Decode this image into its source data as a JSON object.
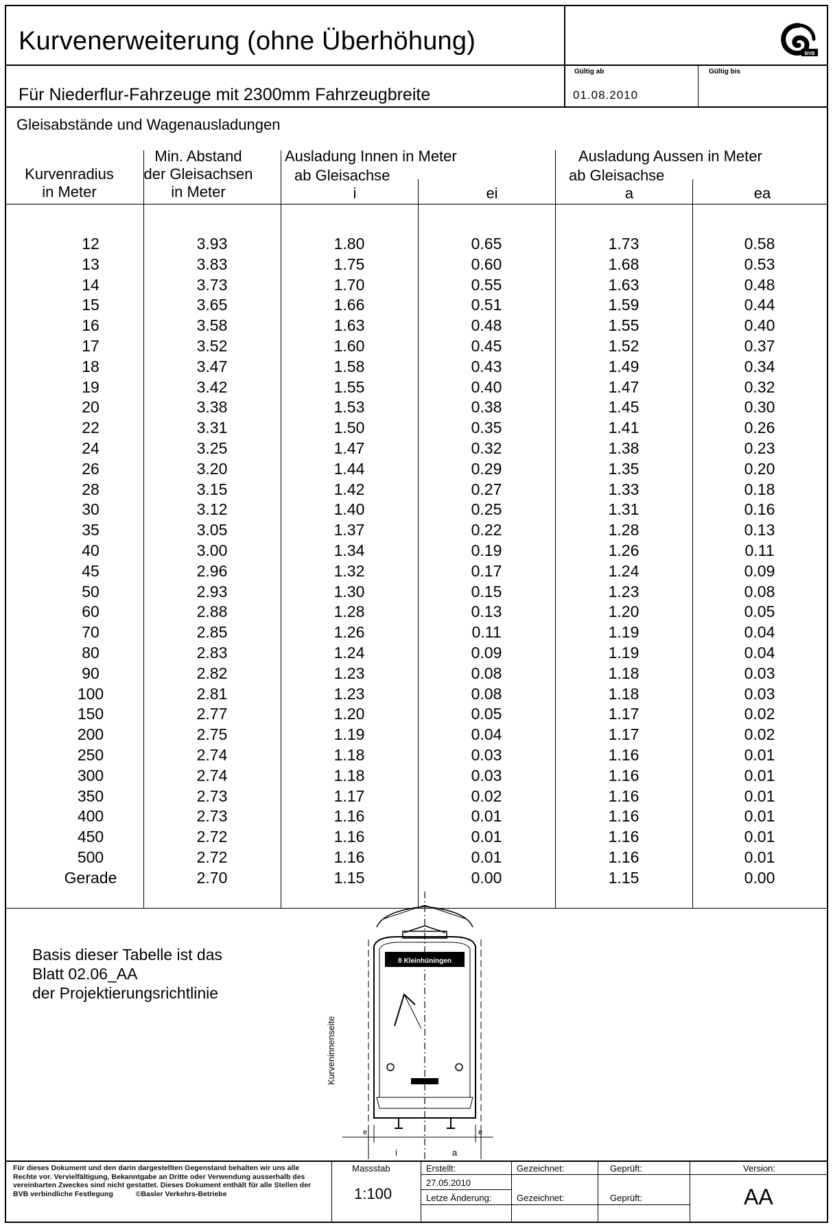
{
  "header": {
    "title": "Kurvenerweiterung (ohne Überhöhung)",
    "subtitle": "Für Niederflur-Fahrzeuge mit 2300mm Fahrzeugbreite",
    "valid_from_label": "Gültig ab",
    "valid_from_value": "01.08.2010",
    "valid_to_label": "Gültig bis",
    "logo_text": "BVB"
  },
  "section_title": "Gleisabstände und Wagenausladungen",
  "table": {
    "col_radius_line1": "Kurvenradius",
    "col_radius_line2": "in Meter",
    "col_min_line1": "Min. Abstand",
    "col_min_line2": "der Gleisachsen",
    "col_min_line3": "in Meter",
    "group_inner": "Ausladung Innen in Meter",
    "group_inner_sub": "ab Gleisachse",
    "group_outer": "Ausladung Aussen in Meter",
    "group_outer_sub": "ab Gleisachse",
    "col_i": "i",
    "col_ei": "ei",
    "col_a": "a",
    "col_ea": "ea",
    "rows": [
      [
        "12",
        "3.93",
        "1.80",
        "0.65",
        "1.73",
        "0.58"
      ],
      [
        "13",
        "3.83",
        "1.75",
        "0.60",
        "1.68",
        "0.53"
      ],
      [
        "14",
        "3.73",
        "1.70",
        "0.55",
        "1.63",
        "0.48"
      ],
      [
        "15",
        "3.65",
        "1.66",
        "0.51",
        "1.59",
        "0.44"
      ],
      [
        "16",
        "3.58",
        "1.63",
        "0.48",
        "1.55",
        "0.40"
      ],
      [
        "17",
        "3.52",
        "1.60",
        "0.45",
        "1.52",
        "0.37"
      ],
      [
        "18",
        "3.47",
        "1.58",
        "0.43",
        "1.49",
        "0.34"
      ],
      [
        "19",
        "3.42",
        "1.55",
        "0.40",
        "1.47",
        "0.32"
      ],
      [
        "20",
        "3.38",
        "1.53",
        "0.38",
        "1.45",
        "0.30"
      ],
      [
        "22",
        "3.31",
        "1.50",
        "0.35",
        "1.41",
        "0.26"
      ],
      [
        "24",
        "3.25",
        "1.47",
        "0.32",
        "1.38",
        "0.23"
      ],
      [
        "26",
        "3.20",
        "1.44",
        "0.29",
        "1.35",
        "0.20"
      ],
      [
        "28",
        "3.15",
        "1.42",
        "0.27",
        "1.33",
        "0.18"
      ],
      [
        "30",
        "3.12",
        "1.40",
        "0.25",
        "1.31",
        "0.16"
      ],
      [
        "35",
        "3.05",
        "1.37",
        "0.22",
        "1.28",
        "0.13"
      ],
      [
        "40",
        "3.00",
        "1.34",
        "0.19",
        "1.26",
        "0.11"
      ],
      [
        "45",
        "2.96",
        "1.32",
        "0.17",
        "1.24",
        "0.09"
      ],
      [
        "50",
        "2.93",
        "1.30",
        "0.15",
        "1.23",
        "0.08"
      ],
      [
        "60",
        "2.88",
        "1.28",
        "0.13",
        "1.20",
        "0.05"
      ],
      [
        "70",
        "2.85",
        "1.26",
        "0.11",
        "1.19",
        "0.04"
      ],
      [
        "80",
        "2.83",
        "1.24",
        "0.09",
        "1.19",
        "0.04"
      ],
      [
        "90",
        "2.82",
        "1.23",
        "0.08",
        "1.18",
        "0.03"
      ],
      [
        "100",
        "2.81",
        "1.23",
        "0.08",
        "1.18",
        "0.03"
      ],
      [
        "150",
        "2.77",
        "1.20",
        "0.05",
        "1.17",
        "0.02"
      ],
      [
        "200",
        "2.75",
        "1.19",
        "0.04",
        "1.17",
        "0.02"
      ],
      [
        "250",
        "2.74",
        "1.18",
        "0.03",
        "1.16",
        "0.01"
      ],
      [
        "300",
        "2.74",
        "1.18",
        "0.03",
        "1.16",
        "0.01"
      ],
      [
        "350",
        "2.73",
        "1.17",
        "0.02",
        "1.16",
        "0.01"
      ],
      [
        "400",
        "2.73",
        "1.16",
        "0.01",
        "1.16",
        "0.01"
      ],
      [
        "450",
        "2.72",
        "1.16",
        "0.01",
        "1.16",
        "0.01"
      ],
      [
        "500",
        "2.72",
        "1.16",
        "0.01",
        "1.16",
        "0.01"
      ],
      [
        "Gerade",
        "2.70",
        "1.15",
        "0.00",
        "1.15",
        "0.00"
      ]
    ]
  },
  "note": {
    "line1": "Basis dieser Tabelle ist das",
    "line2": "Blatt 02.06_AA",
    "line3": "der Projektierungsrichtlinie"
  },
  "drawing": {
    "destination_sign": "8 Kleinhüningen",
    "side_label": "Kurveninnenseite",
    "label_e_left": "e",
    "label_e_right": "e",
    "label_i": "i",
    "label_a": "a"
  },
  "footer": {
    "legal_text": "Für dieses Dokument und den darin dargestellten Gegenstand behalten wir uns alle Rechte vor. Vervielfältigung, Bekanntgabe an Dritte oder Verwendung ausserhalb des vereinbarten Zweckes sind nicht gestattet. Dieses Dokument enthält für alle Stellen der BVB verbindliche Festlegung",
    "copyright": "©Basler Verkehrs-Betriebe",
    "scale_label": "Massstab",
    "scale_value": "1:100",
    "created_label": "Erstellt:",
    "created_date": "27.05.2010",
    "drawn_label": "Gezeichnet:",
    "checked_label": "Geprüft:",
    "last_change_label": "Letze Änderung:",
    "drawn_label2": "Gezeichnet:",
    "checked_label2": "Geprüft:",
    "version_label": "Version:",
    "version_value": "AA"
  }
}
